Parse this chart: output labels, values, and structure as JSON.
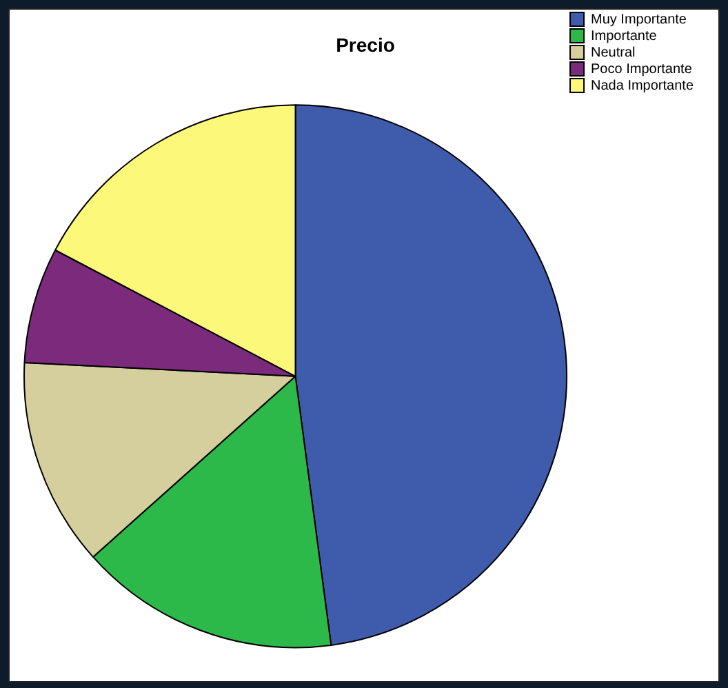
{
  "chart_data": {
    "type": "pie",
    "title": "Precio",
    "categories": [
      "Muy Importante",
      "Importante",
      "Neutral",
      "Poco Importante",
      "Nada Importante"
    ],
    "values": [
      47.9,
      15.5,
      12.4,
      6.9,
      17.3
    ],
    "colors": [
      "#3f5bab",
      "#2db84a",
      "#d4cf9c",
      "#7b2a7c",
      "#fbf87a"
    ],
    "legend": "top right"
  }
}
